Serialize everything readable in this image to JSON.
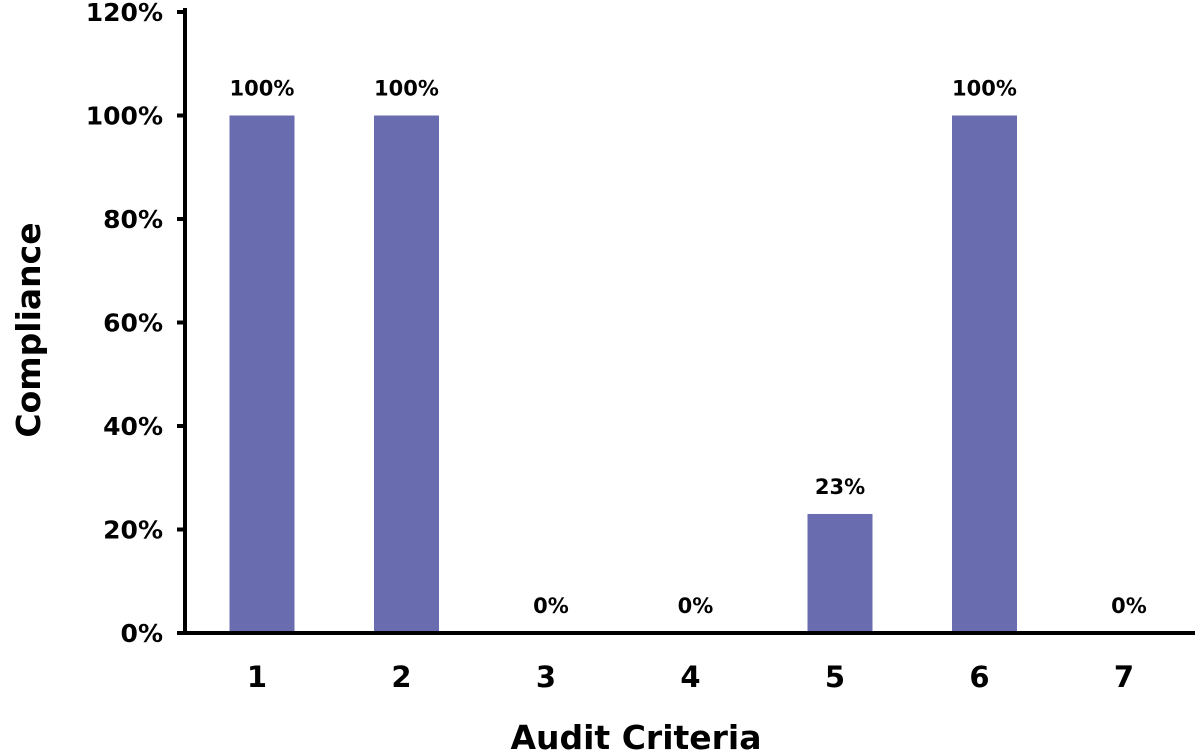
{
  "chart_data": {
    "type": "bar",
    "title": "",
    "xlabel": "Audit Criteria",
    "ylabel": "Compliance",
    "categories": [
      "1",
      "2",
      "3",
      "4",
      "5",
      "6",
      "7"
    ],
    "values": [
      100,
      100,
      0,
      0,
      23,
      100,
      0
    ],
    "data_labels": [
      "100%",
      "100%",
      "0%",
      "0%",
      "23%",
      "100%",
      "0%"
    ],
    "ylim": [
      0,
      120
    ],
    "yticks": [
      0,
      20,
      40,
      60,
      80,
      100,
      120
    ],
    "ytick_labels": [
      "0%",
      "20%",
      "40%",
      "60%",
      "80%",
      "100%",
      "120%"
    ],
    "grid": false,
    "legend": "none",
    "bar_color": "#6a6cb0",
    "axis_color": "#000000"
  }
}
